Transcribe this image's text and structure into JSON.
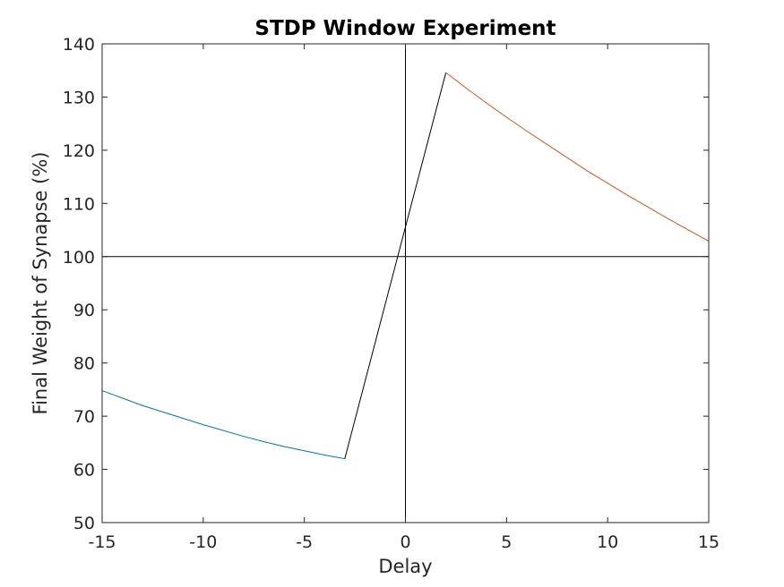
{
  "chart_data": {
    "type": "line",
    "title": "STDP Window Experiment",
    "xlabel": "Delay",
    "ylabel": "Final Weight of Synapse (%)",
    "xlim": [
      -15,
      15
    ],
    "ylim": [
      50,
      140
    ],
    "xticks": [
      -15,
      -10,
      -5,
      0,
      5,
      10,
      15
    ],
    "yticks": [
      50,
      60,
      70,
      80,
      90,
      100,
      110,
      120,
      130,
      140
    ],
    "grid": false,
    "reference_lines": {
      "x": 0,
      "y": 100,
      "color": "#000000"
    },
    "series": [
      {
        "color": "#0072BD",
        "x": [
          -15,
          -14,
          -13,
          -12,
          -11,
          -10,
          -9,
          -8,
          -7,
          -6,
          -5,
          -4,
          -3
        ],
        "y": [
          74.8,
          73.4,
          72.0,
          70.8,
          69.6,
          68.4,
          67.3,
          66.2,
          65.2,
          64.3,
          63.5,
          62.7,
          62.0
        ]
      },
      {
        "color": "#000000",
        "x": [
          -3,
          2
        ],
        "y": [
          62.0,
          134.6
        ]
      },
      {
        "color": "#D95319",
        "x": [
          2,
          3,
          4,
          5,
          6,
          7,
          8,
          9,
          10,
          11,
          12,
          13,
          14,
          15
        ],
        "y": [
          134.6,
          131.7,
          128.9,
          126.2,
          123.6,
          121.1,
          118.6,
          116.1,
          113.8,
          111.5,
          109.3,
          107.1,
          105.0,
          102.9
        ]
      }
    ]
  }
}
